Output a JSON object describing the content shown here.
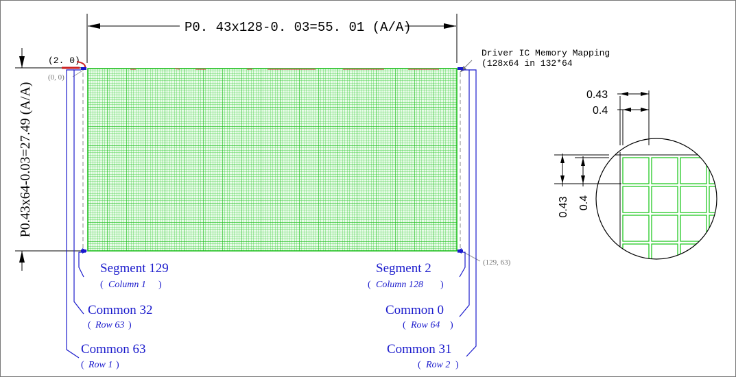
{
  "dimension_top": "P0. 43x128-0. 03=55. 01 (A/A)",
  "dimension_left": "P0.43x64-0.03=27.49 (A/A)",
  "origin_offset": "(2. 0)",
  "origin_coord": "(0, 0)",
  "end_coord": "(129, 63)",
  "driver_note": {
    "line1": "Driver IC Memory Mapping",
    "line2": "(128x64 in 132*64"
  },
  "left_labels": {
    "segment": "Segment 129",
    "segment_sub": "Column 1",
    "common_a": "Common 32",
    "common_a_sub": "Row 63",
    "common_b": "Common 63",
    "common_b_sub": "Row 1"
  },
  "right_labels": {
    "segment": "Segment 2",
    "segment_sub": "Column 128",
    "common_a": "Common 0",
    "common_a_sub": "Row 64",
    "common_b": "Common 31",
    "common_b_sub": "Row 2"
  },
  "detail": {
    "pitch_h": "0.43",
    "dot_h": "0.4",
    "pitch_v": "0.43",
    "dot_v": "0.4"
  },
  "colors": {
    "pixel_grid": "#22c822",
    "label_blue": "#1a1acc",
    "dimension": "#000000",
    "coord_gray": "#777777",
    "origin_red": "#cc2222"
  }
}
